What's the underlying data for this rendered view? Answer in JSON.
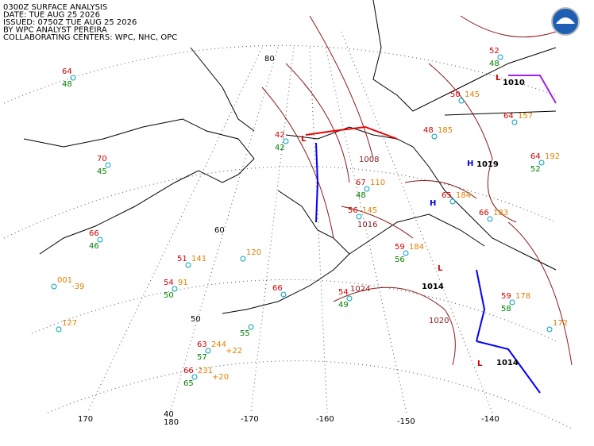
{
  "header": {
    "lines": [
      "0300Z SURFACE ANALYSIS",
      "DATE: TUE AUG 25 2026",
      "ISSUED: 0750Z TUE AUG 25 2026",
      "BY WPC ANALYST PEREIRA",
      "COLLABORATING CENTERS: WPC, NHC, OPC"
    ]
  },
  "grid": {
    "latitudes": [
      "80",
      "60",
      "50",
      "40"
    ],
    "longitudes": [
      "170",
      "180",
      "-170",
      "-160",
      "-150",
      "-140"
    ]
  },
  "centers": [
    "L",
    "H",
    "H",
    "L",
    "L",
    "L"
  ],
  "pressure_labels": [
    "1010",
    "1019",
    "1014",
    "1014",
    "1008",
    "1016",
    "1024",
    "1020"
  ],
  "stations": [
    {
      "temp": "64",
      "dew": "48"
    },
    {
      "temp": "70",
      "dew": "45"
    },
    {
      "temp": "66",
      "dew": "46"
    },
    {
      "temp": "51",
      "pres": "141"
    },
    {
      "pres": "120"
    },
    {
      "temp": "54",
      "dew": "50",
      "pres": "91"
    },
    {
      "pres": "001",
      "tend": "-39"
    },
    {
      "pres": "127"
    },
    {
      "temp": "63",
      "dew": "57",
      "pres": "244",
      "tend": "+22"
    },
    {
      "temp": "66",
      "dew": "65",
      "pres": "231",
      "tend": "+20"
    },
    {
      "dew": "55"
    },
    {
      "temp": "66"
    },
    {
      "temp": "54",
      "dew": "49"
    },
    {
      "temp": "59",
      "dew": "56",
      "pres": "184"
    },
    {
      "temp": "66",
      "pres": "183"
    },
    {
      "temp": "59",
      "dew": "58",
      "pres": "178"
    },
    {
      "pres": "172"
    },
    {
      "temp": "64",
      "pres": "157"
    },
    {
      "temp": "64",
      "dew": "52",
      "pres": "192"
    },
    {
      "temp": "52",
      "dew": "48"
    },
    {
      "temp": "42",
      "dew": "42"
    },
    {
      "temp": "67",
      "dew": "48",
      "pres": "110"
    },
    {
      "temp": "56",
      "pres": "145"
    },
    {
      "temp": "50",
      "pres": "145"
    },
    {
      "temp": "48",
      "pres": "185"
    },
    {
      "temp": "65",
      "pres": "184"
    }
  ]
}
